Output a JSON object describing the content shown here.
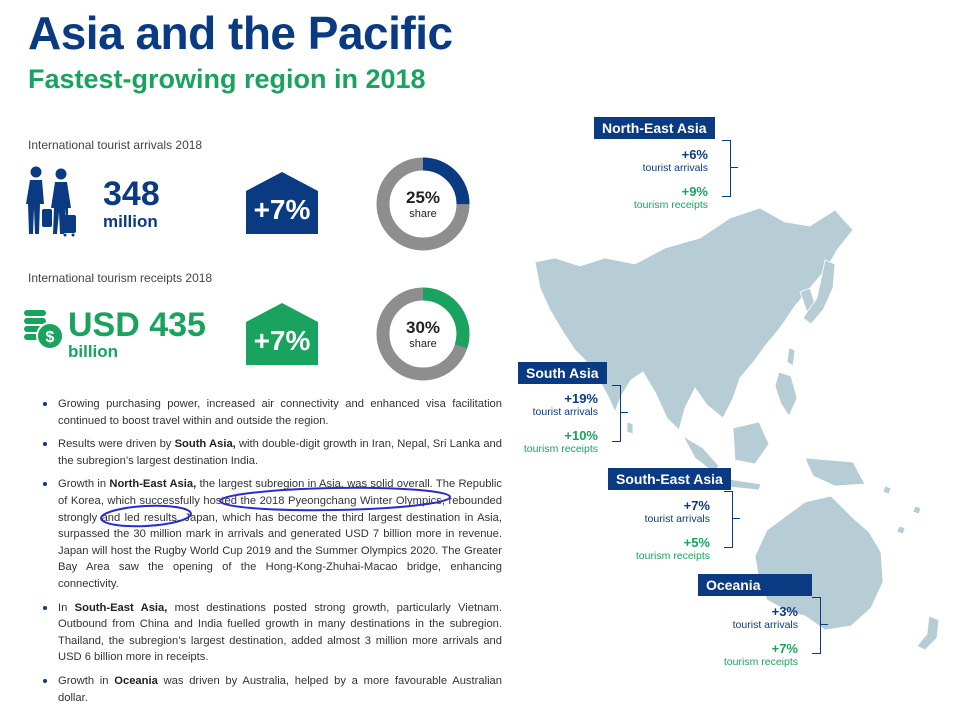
{
  "header": {
    "title": "Asia and the Pacific",
    "subtitle": "Fastest-growing region in 2018"
  },
  "arrivals": {
    "label": "International tourist arrivals 2018",
    "value": "348",
    "unit": "million",
    "growth": "+7%",
    "share": "25%",
    "share_label": "share",
    "share_fraction": 0.25,
    "icon": "travellers-icon",
    "color": "#0a3a82"
  },
  "receipts": {
    "label": "International tourism receipts 2018",
    "value": "USD 435",
    "unit": "billion",
    "growth": "+7%",
    "share": "30%",
    "share_label": "share",
    "share_fraction": 0.3,
    "icon": "coins-dollar-icon",
    "color": "#1aa35e"
  },
  "bullets": [
    {
      "text": "Growing purchasing power, increased air connectivity and enhanced visa facilitation continued to boost travel within and outside the region."
    },
    {
      "pre": "Results were driven by ",
      "bold": "South Asia,",
      "post": " with double-digit growth in Iran, Nepal, Sri Lanka and the subregion’s largest destination India."
    },
    {
      "pre": "Growth in ",
      "bold": "North-East Asia,",
      "post": " the largest subregion in Asia, was solid overall. The Republic of Korea, which successfully hosted the 2018 Pyeongchang Winter Olympics, rebounded strongly and led results. Japan, which has become the third largest destination in Asia, surpassed the 30 million mark in arrivals and generated USD 7 billion more in revenue. Japan will host the Rugby World Cup 2019 and the Summer Olympics 2020. The Greater Bay Area saw the opening of the Hong-Kong-Zhuhai-Macao bridge, enhancing connectivity."
    },
    {
      "pre": "In ",
      "bold": "South-East Asia,",
      "post": " most destinations posted strong growth, particularly Vietnam. Outbound from China and India fuelled growth in many destinations in the subregion. Thailand, the subregion’s largest destination, added almost 3 million more arrivals and USD 6 billion more in receipts."
    },
    {
      "pre": "Growth in ",
      "bold": "Oceania",
      "post": " was driven by Australia, helped by a more favourable Australian dollar."
    }
  ],
  "regions": [
    {
      "name": "North-East Asia",
      "arrivals": "+6%",
      "arrivals_label": "tourist arrivals",
      "receipts": "+9%",
      "receipts_label": "tourism receipts"
    },
    {
      "name": "South Asia",
      "arrivals": "+19%",
      "arrivals_label": "tourist arrivals",
      "receipts": "+10%",
      "receipts_label": "tourism receipts"
    },
    {
      "name": "South-East Asia",
      "arrivals": "+7%",
      "arrivals_label": "tourist arrivals",
      "receipts": "+5%",
      "receipts_label": "tourism receipts"
    },
    {
      "name": "Oceania",
      "arrivals": "+3%",
      "arrivals_label": "tourist arrivals",
      "receipts": "+7%",
      "receipts_label": "tourism receipts"
    }
  ],
  "colors": {
    "navy": "#0a3a82",
    "green": "#1aa35e",
    "ring_gray": "#8e8e8e",
    "map": "#b7cdd6",
    "annotation": "#2b2bd0"
  }
}
